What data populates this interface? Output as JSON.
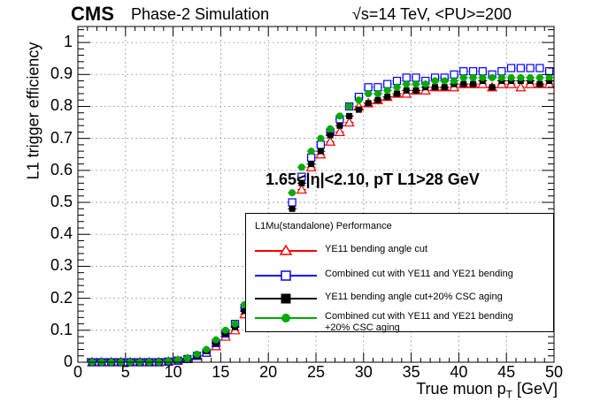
{
  "header": {
    "experiment": "CMS",
    "subtitle": "Phase-2 Simulation",
    "energy": "√s=14 TeV, <PU>=200"
  },
  "annotation": "1.65<|η|<2.10, pT L1>28 GeV",
  "legend": {
    "title": "L1Mu(standalone) Performance",
    "entries": [
      {
        "label": "YE11 bending angle cut",
        "color": "#ff0000",
        "marker": "open-triangle"
      },
      {
        "label": "Combined cut with YE11 and YE21 bending",
        "color": "#0000ff",
        "marker": "open-square"
      },
      {
        "label": "YE11 bending angle cut+20% CSC aging",
        "color": "#000000",
        "marker": "filled-square"
      },
      {
        "label": "Combined cut with YE11 and YE21 bending",
        "label2": "+20% CSC aging",
        "color": "#00aa00",
        "marker": "filled-circle"
      }
    ]
  },
  "chart_data": {
    "type": "scatter",
    "xlabel": "True muon p_T [GeV]",
    "ylabel": "L1 trigger efficiency",
    "xlim": [
      0,
      50
    ],
    "ylim": [
      0,
      1.05
    ],
    "xticks": [
      0,
      5,
      10,
      15,
      20,
      25,
      30,
      35,
      40,
      45,
      50
    ],
    "yticks": [
      0,
      0.1,
      0.2,
      0.3,
      0.4,
      0.5,
      0.6,
      0.7,
      0.8,
      0.9,
      1
    ],
    "ytick_labels": [
      "0",
      "0.1",
      "0.2",
      "0.3",
      "0.4",
      "0.5",
      "0.6",
      "0.7",
      "0.8",
      "0.9",
      "1"
    ],
    "grid": true,
    "legend_position": "lower-right",
    "x": [
      1.5,
      2.5,
      3.5,
      4.5,
      5.5,
      6.5,
      7.5,
      8.5,
      9.5,
      10.5,
      11.5,
      12.5,
      13.5,
      14.5,
      15.5,
      16.5,
      17.5,
      18.5,
      19.5,
      20.5,
      21.5,
      22.5,
      23.5,
      24.5,
      25.5,
      26.5,
      27.5,
      28.5,
      29.5,
      30.5,
      31.5,
      32.5,
      33.5,
      34.5,
      35.5,
      36.5,
      37.5,
      38.5,
      39.5,
      40.5,
      41.5,
      42.5,
      43.5,
      44.5,
      45.5,
      46.5,
      47.5,
      48.5,
      49.5
    ],
    "series": [
      {
        "name": "YE11 bending angle cut",
        "color": "#ff0000",
        "marker": "open-triangle",
        "values": [
          0.0,
          0.0,
          0.0,
          0.0,
          0.0,
          0.0,
          0.0,
          0.0,
          0.002,
          0.005,
          0.01,
          0.02,
          0.03,
          0.05,
          0.08,
          0.1,
          0.15,
          0.18,
          0.25,
          0.33,
          0.39,
          0.45,
          0.54,
          0.61,
          0.65,
          0.69,
          0.72,
          0.75,
          0.8,
          0.81,
          0.82,
          0.83,
          0.84,
          0.84,
          0.85,
          0.85,
          0.86,
          0.86,
          0.86,
          0.87,
          0.87,
          0.87,
          0.86,
          0.87,
          0.87,
          0.86,
          0.87,
          0.87,
          0.87
        ]
      },
      {
        "name": "Combined cut with YE11 and YE21 bending",
        "color": "#0000ff",
        "marker": "open-square",
        "values": [
          0.0,
          0.0,
          0.0,
          0.0,
          0.0,
          0.0,
          0.0,
          0.0,
          0.002,
          0.005,
          0.01,
          0.02,
          0.03,
          0.06,
          0.09,
          0.12,
          0.17,
          0.2,
          0.27,
          0.35,
          0.42,
          0.5,
          0.58,
          0.64,
          0.68,
          0.72,
          0.76,
          0.8,
          0.83,
          0.86,
          0.86,
          0.87,
          0.88,
          0.89,
          0.89,
          0.88,
          0.89,
          0.89,
          0.9,
          0.91,
          0.91,
          0.91,
          0.9,
          0.91,
          0.92,
          0.92,
          0.92,
          0.92,
          0.91
        ]
      },
      {
        "name": "YE11 bending angle cut+20% CSC aging",
        "color": "#000000",
        "marker": "filled-square",
        "values": [
          0.0,
          0.0,
          0.0,
          0.0,
          0.0,
          0.0,
          0.0,
          0.0,
          0.002,
          0.006,
          0.012,
          0.02,
          0.035,
          0.06,
          0.09,
          0.11,
          0.16,
          0.2,
          0.26,
          0.34,
          0.41,
          0.48,
          0.56,
          0.62,
          0.66,
          0.71,
          0.74,
          0.77,
          0.79,
          0.81,
          0.82,
          0.83,
          0.84,
          0.85,
          0.85,
          0.86,
          0.86,
          0.86,
          0.87,
          0.87,
          0.87,
          0.88,
          0.86,
          0.88,
          0.88,
          0.88,
          0.88,
          0.87,
          0.88
        ]
      },
      {
        "name": "Combined cut with YE11 and YE21 bending +20% CSC aging",
        "color": "#00aa00",
        "marker": "filled-circle",
        "values": [
          0.0,
          0.0,
          0.0,
          0.0,
          0.0,
          0.0,
          0.0,
          0.0,
          0.003,
          0.007,
          0.013,
          0.025,
          0.04,
          0.07,
          0.1,
          0.12,
          0.18,
          0.22,
          0.28,
          0.37,
          0.45,
          0.53,
          0.61,
          0.66,
          0.7,
          0.73,
          0.77,
          0.8,
          0.82,
          0.84,
          0.84,
          0.85,
          0.86,
          0.87,
          0.87,
          0.87,
          0.88,
          0.88,
          0.88,
          0.89,
          0.89,
          0.89,
          0.89,
          0.89,
          0.89,
          0.89,
          0.89,
          0.89,
          0.89
        ]
      }
    ]
  }
}
